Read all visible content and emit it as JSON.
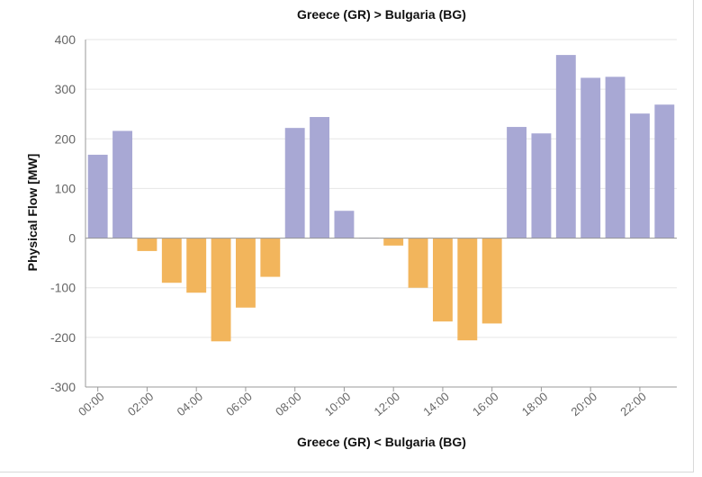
{
  "chart_data": {
    "type": "bar",
    "title": "Greece (GR) > Bulgaria (BG)",
    "xlabel": "Greece (GR) < Bulgaria (BG)",
    "ylabel": "Physical Flow [MW]",
    "ylim": [
      -300,
      400
    ],
    "yticks": [
      "400",
      "300",
      "200",
      "100",
      "0",
      "-100",
      "-200",
      "-300"
    ],
    "ytick_values": [
      400,
      300,
      200,
      100,
      0,
      -100,
      -200,
      -300
    ],
    "categories": [
      "00:00",
      "01:00",
      "02:00",
      "03:00",
      "04:00",
      "05:00",
      "06:00",
      "07:00",
      "08:00",
      "09:00",
      "10:00",
      "11:00",
      "12:00",
      "13:00",
      "14:00",
      "15:00",
      "16:00",
      "17:00",
      "18:00",
      "19:00",
      "20:00",
      "21:00",
      "22:00",
      "23:00"
    ],
    "xtick_labels": [
      "00:00",
      "02:00",
      "04:00",
      "06:00",
      "08:00",
      "10:00",
      "12:00",
      "14:00",
      "16:00",
      "18:00",
      "20:00",
      "22:00"
    ],
    "values": [
      168,
      216,
      -26,
      -90,
      -110,
      -208,
      -140,
      -78,
      222,
      244,
      55,
      1,
      -15,
      -100,
      -168,
      -206,
      -172,
      224,
      211,
      369,
      323,
      325,
      251,
      269
    ],
    "positive_color": "#a8a8d4",
    "negative_color": "#f2b55c",
    "grid": true
  }
}
